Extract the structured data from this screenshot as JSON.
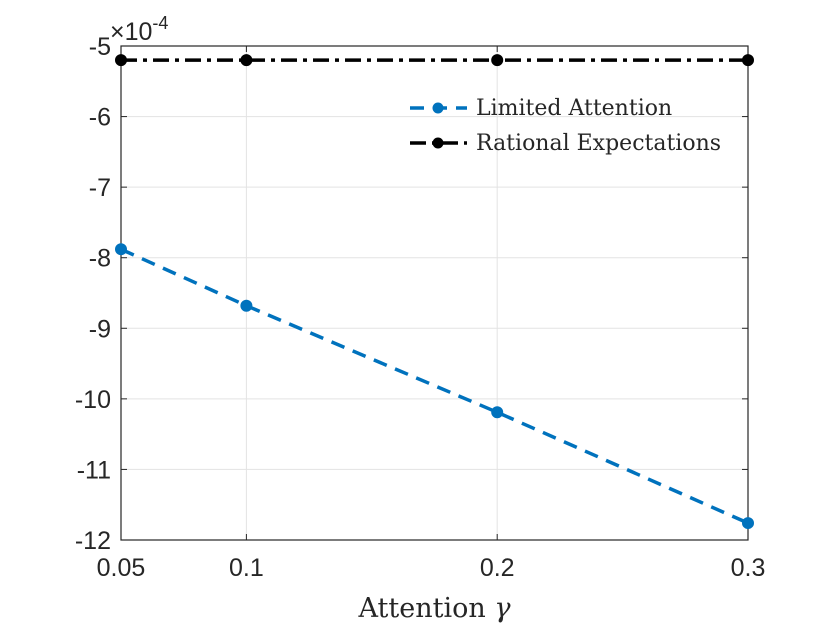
{
  "chart_data": {
    "type": "line",
    "x": [
      0.05,
      0.1,
      0.2,
      0.3
    ],
    "xlim": [
      0.05,
      0.3
    ],
    "ylim": [
      -12,
      -5
    ],
    "xticks": [
      0.05,
      0.1,
      0.2,
      0.3
    ],
    "xtick_labels": [
      "0.05",
      "0.1",
      "0.2",
      "0.3"
    ],
    "yticks": [
      -12,
      -11,
      -10,
      -9,
      -8,
      -7,
      -6,
      -5
    ],
    "ytick_labels": [
      "-12",
      "-11",
      "-10",
      "-9",
      "-8",
      "-7",
      "-6",
      "-5"
    ],
    "y_scale_label": {
      "base": "×10",
      "exponent": "-4"
    },
    "xlabel": "Attention",
    "xlabel_symbol": "γ",
    "ylabel": "",
    "grid": true,
    "legend_position": "top-right",
    "series": [
      {
        "name": "Limited Attention",
        "values": [
          -7.88,
          -8.68,
          -10.19,
          -11.76
        ],
        "color": "#0072bd",
        "style": "dashed",
        "marker": "circle"
      },
      {
        "name": "Rational Expectations",
        "values": [
          -5.2,
          -5.2,
          -5.2,
          -5.2
        ],
        "color": "#000000",
        "style": "dash-dot",
        "marker": "circle"
      }
    ]
  }
}
